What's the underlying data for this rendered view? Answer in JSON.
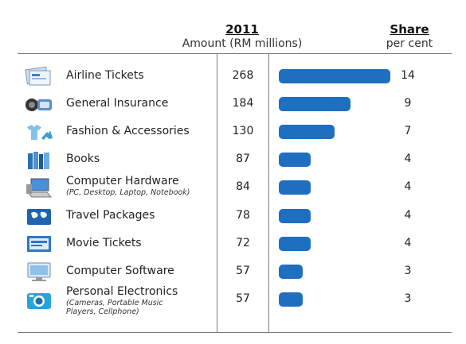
{
  "header": {
    "year": "2011",
    "amount_label": "Amount (RM millions)",
    "share_label": "Share",
    "share_unit": "per cent"
  },
  "colors": {
    "bar": "#1e6fbf"
  },
  "chart_data": {
    "type": "bar",
    "orientation": "horizontal",
    "categories": [
      "Airline Tickets",
      "General Insurance",
      "Fashion & Accessories",
      "Books",
      "Computer Hardware",
      "Travel Packages",
      "Movie Tickets",
      "Computer Software",
      "Personal Electronics"
    ],
    "values": [
      268,
      184,
      130,
      87,
      84,
      78,
      72,
      57,
      57
    ],
    "shares": [
      14,
      9,
      7,
      4,
      4,
      4,
      4,
      3,
      3
    ],
    "column_title": "2011",
    "value_label": "Amount (RM millions)",
    "share_label": "Share",
    "share_unit": "per cent",
    "value_scale": "bar length proportional to share; longest = 14"
  },
  "rows": [
    {
      "label": "Airline Tickets",
      "sub": "",
      "amount": "268",
      "share": "14",
      "icon": "airline-ticket-icon"
    },
    {
      "label": "General Insurance",
      "sub": "",
      "amount": "184",
      "share": "9",
      "icon": "insurance-icon"
    },
    {
      "label": "Fashion & Accessories",
      "sub": "",
      "amount": "130",
      "share": "7",
      "icon": "fashion-icon"
    },
    {
      "label": "Books",
      "sub": "",
      "amount": "87",
      "share": "4",
      "icon": "books-icon"
    },
    {
      "label": "Computer Hardware",
      "sub": "(PC, Desktop, Laptop, Notebook)",
      "amount": "84",
      "share": "4",
      "icon": "computer-hardware-icon"
    },
    {
      "label": "Travel Packages",
      "sub": "",
      "amount": "78",
      "share": "4",
      "icon": "travel-icon"
    },
    {
      "label": "Movie Tickets",
      "sub": "",
      "amount": "72",
      "share": "4",
      "icon": "movie-ticket-icon"
    },
    {
      "label": "Computer Software",
      "sub": "",
      "amount": "57",
      "share": "3",
      "icon": "computer-software-icon"
    },
    {
      "label": "Personal Electronics",
      "sub": "(Cameras, Portable Music Players, Cellphone)",
      "amount": "57",
      "share": "3",
      "icon": "camera-icon"
    }
  ]
}
